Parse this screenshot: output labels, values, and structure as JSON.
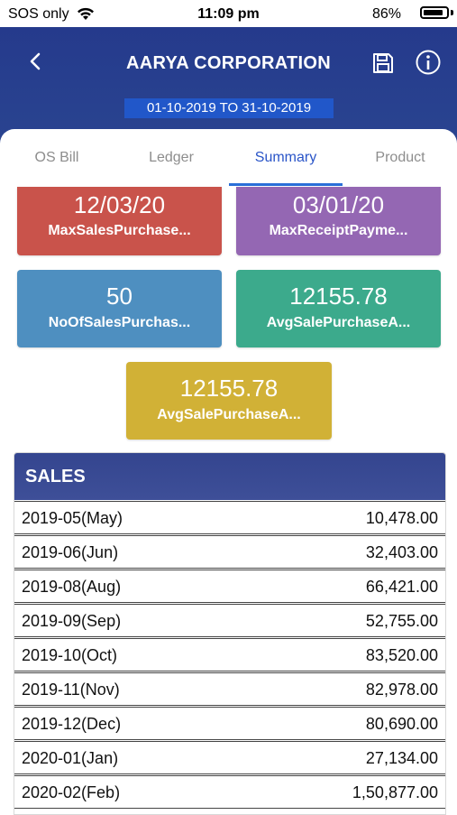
{
  "status_bar": {
    "carrier": "SOS only",
    "time": "11:09 pm",
    "battery": "86%",
    "battery_level": 0.86
  },
  "header": {
    "title": "AARYA CORPORATION",
    "date_range": "01-10-2019 TO 31-10-2019",
    "icons": [
      "back-arrow-icon",
      "save-icon",
      "info-icon"
    ]
  },
  "tabs": [
    {
      "label": "OS Bill"
    },
    {
      "label": "Ledger"
    },
    {
      "label": "Summary",
      "active": true
    },
    {
      "label": "Product"
    }
  ],
  "tiles": [
    {
      "value": "12/03/20",
      "label": "MaxSalesPurchase...",
      "color": "#c9534b"
    },
    {
      "value": "03/01/20",
      "label": "MaxReceiptPayme...",
      "color": "#9467b3"
    },
    {
      "value": "50",
      "label": "NoOfSalesPurchas...",
      "color": "#4e8fc0"
    },
    {
      "value": "12155.78",
      "label": "AvgSalePurchaseA...",
      "color": "#3caa8c"
    },
    {
      "value": "12155.78",
      "label": "AvgSalePurchaseA...",
      "color": "#d1b136"
    }
  ],
  "sales": {
    "title": "SALES",
    "rows": [
      {
        "period": "2019-05(May)",
        "amount": "10,478.00"
      },
      {
        "period": "2019-06(Jun)",
        "amount": "32,403.00"
      },
      {
        "period": "2019-08(Aug)",
        "amount": "66,421.00"
      },
      {
        "period": "2019-09(Sep)",
        "amount": "52,755.00"
      },
      {
        "period": "2019-10(Oct)",
        "amount": "83,520.00"
      },
      {
        "period": "2019-11(Nov)",
        "amount": "82,978.00"
      },
      {
        "period": "2019-12(Dec)",
        "amount": "80,690.00"
      },
      {
        "period": "2020-01(Jan)",
        "amount": "27,134.00"
      },
      {
        "period": "2020-02(Feb)",
        "amount": "1,50,877.00"
      }
    ]
  }
}
